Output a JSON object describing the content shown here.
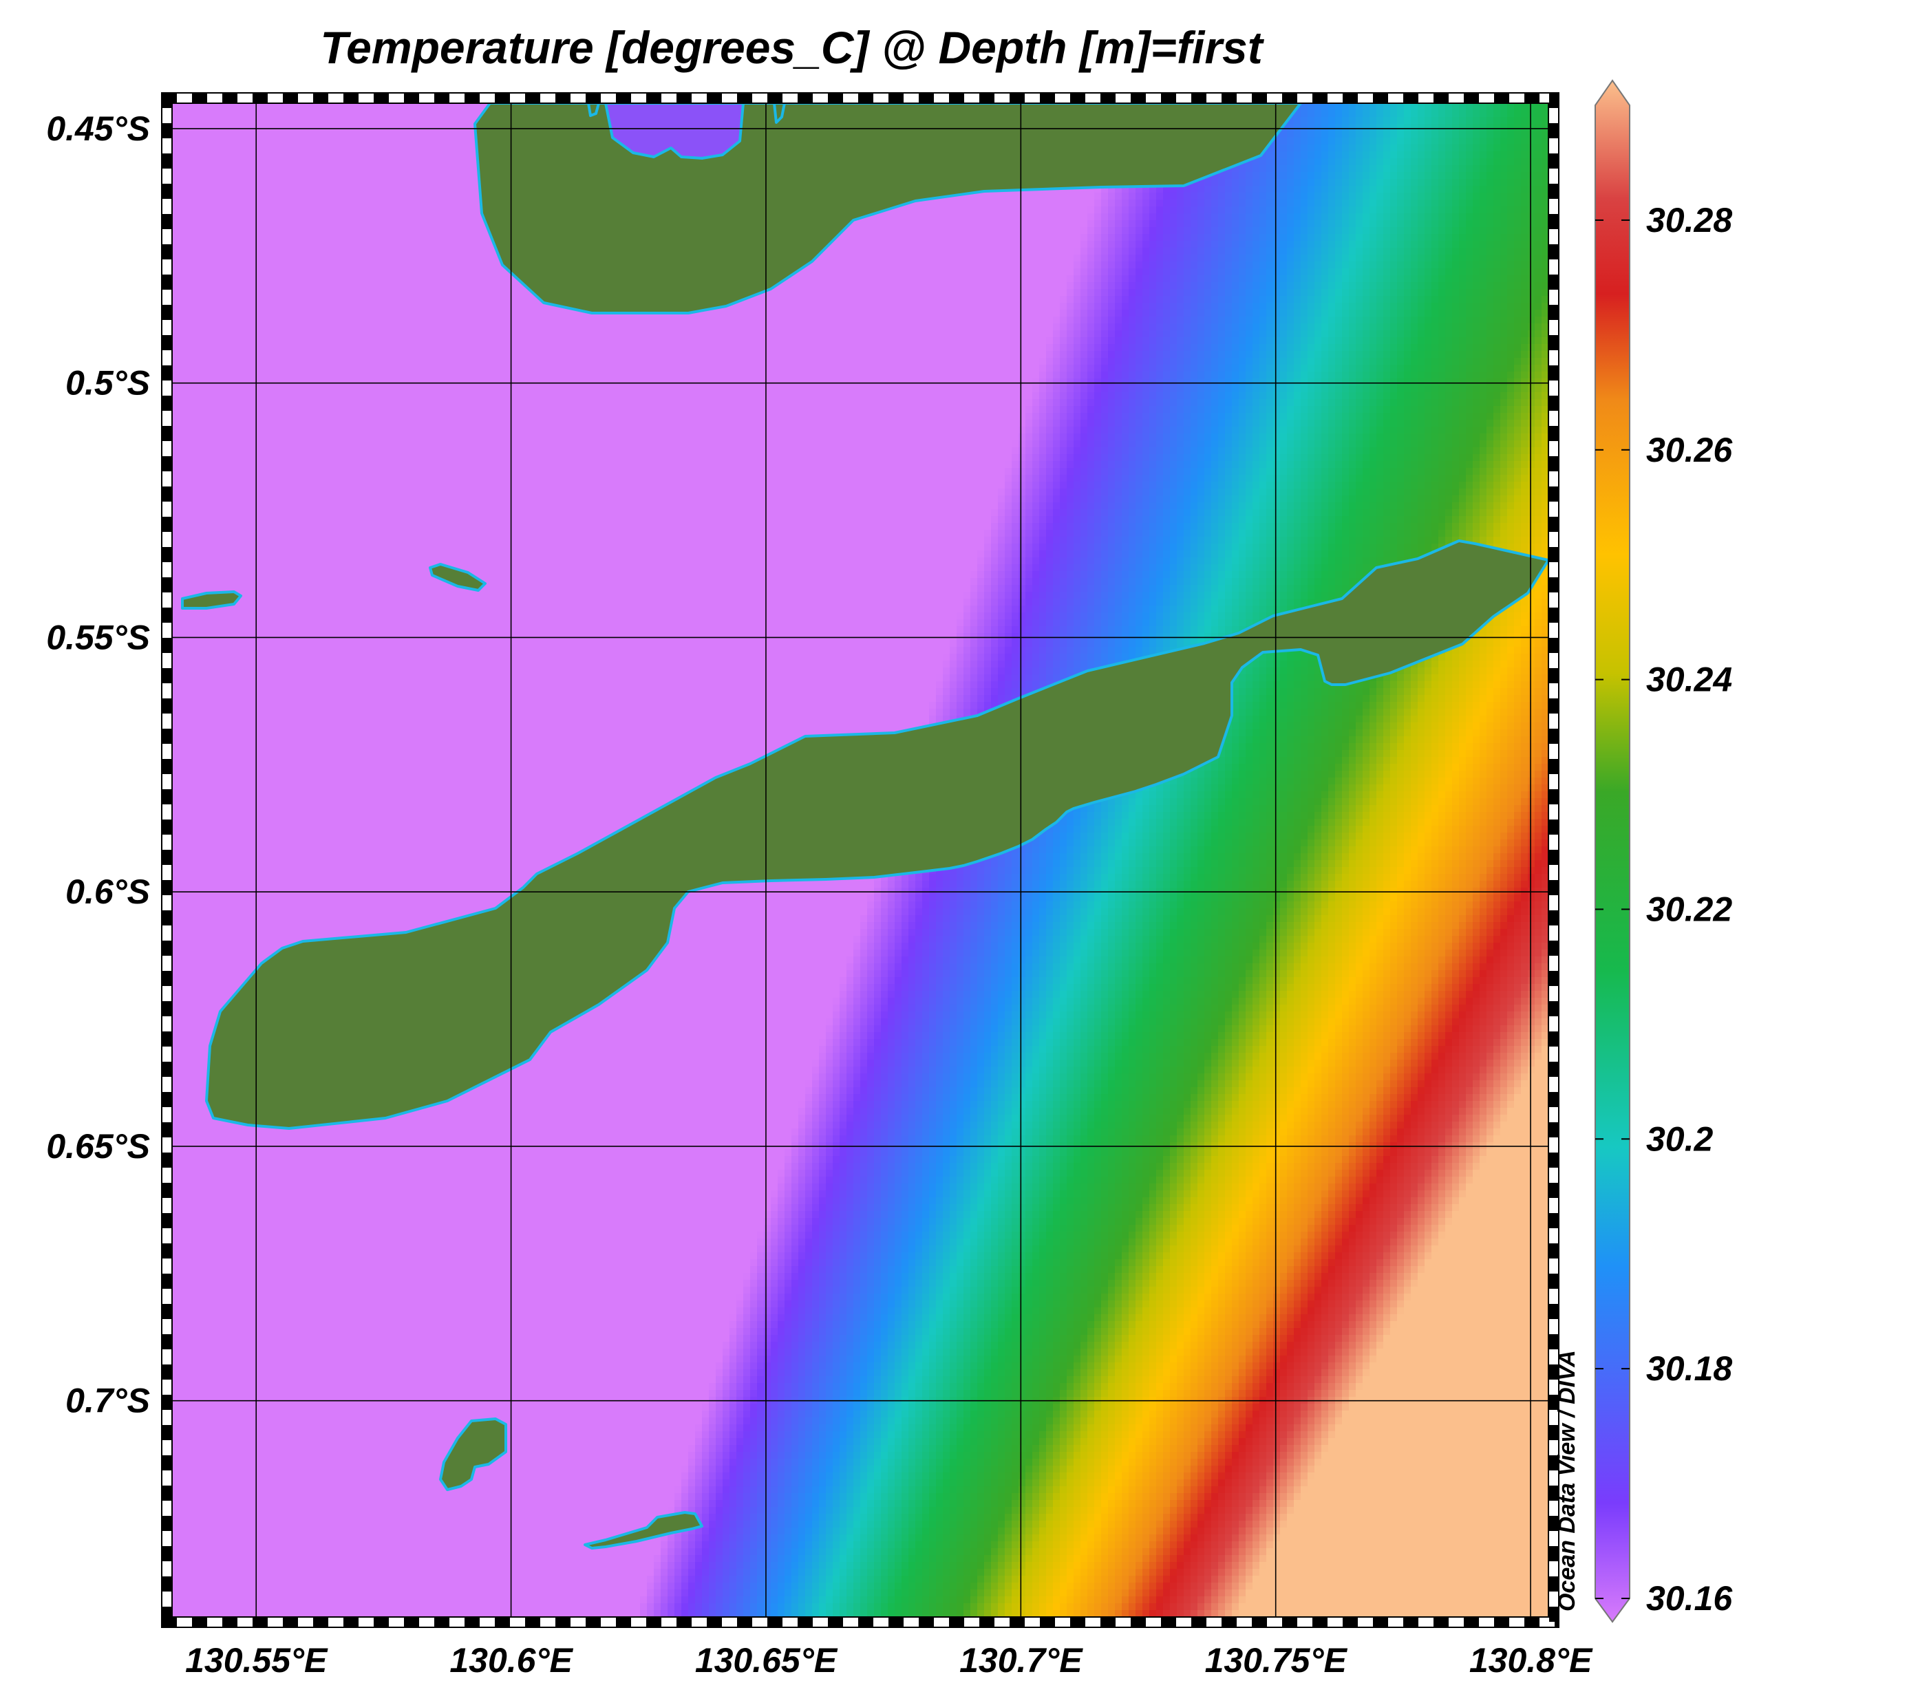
{
  "chart_data": {
    "type": "heatmap",
    "title": "Temperature [degrees_C] @ Depth [m]=first",
    "credit": "Ocean Data View / DIVA",
    "x_axis": {
      "range": [
        130.5335,
        130.8035
      ],
      "ticks": [
        130.55,
        130.6,
        130.65,
        130.7,
        130.75,
        130.8
      ],
      "tick_labels": [
        "130.55°E",
        "130.6°E",
        "130.65°E",
        "130.7°E",
        "130.75°E",
        "130.8°E"
      ]
    },
    "y_axis": {
      "range": [
        -0.7425,
        -0.445
      ],
      "ticks": [
        -0.45,
        -0.5,
        -0.55,
        -0.6,
        -0.65,
        -0.7
      ],
      "tick_labels": [
        "0.45°S",
        "0.5°S",
        "0.55°S",
        "0.6°S",
        "0.65°S",
        "0.7°S"
      ]
    },
    "grid": true,
    "colorbar": {
      "range": [
        30.16,
        30.29
      ],
      "ticks": [
        30.16,
        30.18,
        30.2,
        30.22,
        30.24,
        30.26,
        30.28
      ],
      "tick_labels": [
        "30.16",
        "30.18",
        "30.2",
        "30.22",
        "30.24",
        "30.26",
        "30.28"
      ],
      "stops": [
        {
          "value": 30.16,
          "color": "#d87bfb"
        },
        {
          "value": 30.17,
          "color": "#7a3cfc"
        },
        {
          "value": 30.19,
          "color": "#1f91f7"
        },
        {
          "value": 30.2,
          "color": "#17c8c2"
        },
        {
          "value": 30.215,
          "color": "#17b94d"
        },
        {
          "value": 30.23,
          "color": "#3aa827"
        },
        {
          "value": 30.24,
          "color": "#c6c200"
        },
        {
          "value": 30.25,
          "color": "#ffc200"
        },
        {
          "value": 30.263,
          "color": "#f08a18"
        },
        {
          "value": 30.272,
          "color": "#d72020"
        },
        {
          "value": 30.28,
          "color": "#d94242"
        },
        {
          "value": 30.29,
          "color": "#fbbf8c"
        }
      ]
    },
    "field_description": "Temperature bands run roughly north-south, curving toward the south-east; coolest (30.16) in the west, warmest (30.29) in the east.",
    "colors": {
      "land": "#567f37",
      "coastline": "#1bb8e6",
      "grid": "#000000",
      "background": "#ffffff"
    }
  }
}
